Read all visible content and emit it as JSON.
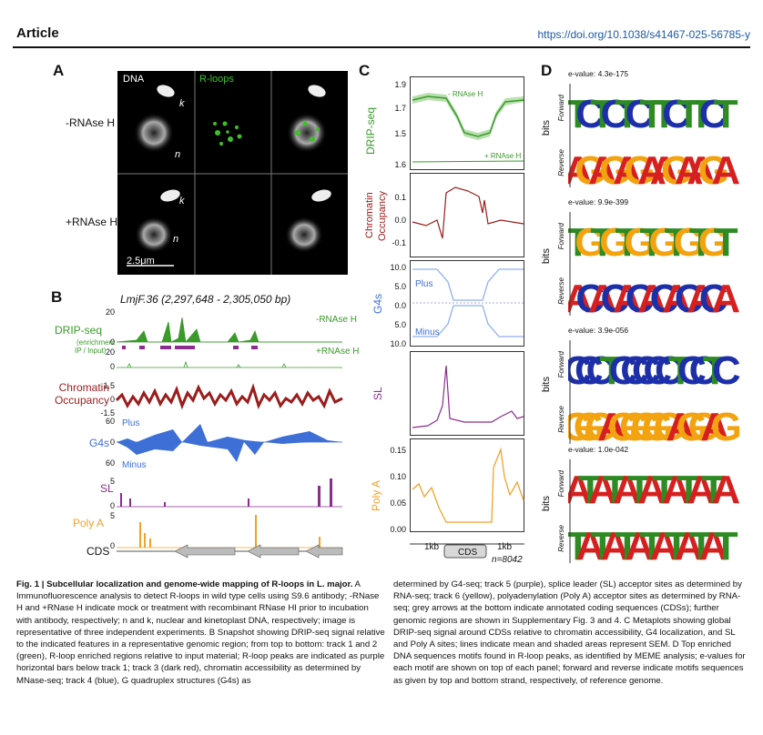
{
  "header": {
    "section": "Article",
    "doi": "https://doi.org/10.1038/s41467-025-56785-y"
  },
  "panelA": {
    "letter": "A",
    "col_labels": [
      "DNA",
      "R-loops"
    ],
    "row_labels": [
      "-RNAse H",
      "+RNAse H"
    ],
    "k": "k",
    "n": "n",
    "scale": "2.5μm"
  },
  "panelB": {
    "letter": "B",
    "locus": "LmjF.36 (2,297,648 - 2,305,050 bp)",
    "tracks": {
      "drip_label": "DRIP-seq",
      "drip_sub1": "(enrichment",
      "drip_sub2": "IP / Input)",
      "drip_minus": "-RNAse H",
      "drip_plus": "+RNAse H",
      "chrom_label1": "Chromatin",
      "chrom_label2": "Occupancy",
      "g4_label": "G4s",
      "plus": "Plus",
      "minus": "Minus",
      "sl_label": "SL",
      "polya_label": "Poly A",
      "cds_label": "CDS"
    },
    "axes": {
      "drip_top": "20",
      "drip_zero": "0",
      "drip_mid": "20",
      "drip_bot": "0",
      "chrom_top": "1.5",
      "chrom_zero": "0",
      "chrom_bot": "-1.5",
      "g4_top": "60",
      "g4_zero": "0",
      "g4_bot": "60",
      "sl_top": "5",
      "sl_zero": "0",
      "pa_top": "5",
      "pa_zero": "0"
    }
  },
  "panelC": {
    "letter": "C",
    "drip": {
      "label": "DRIP-seq",
      "ticks": [
        "1.9",
        "1.7",
        "1.5",
        "1.6"
      ],
      "minus": "- RNAse H",
      "plus": "+ RNAse H"
    },
    "chrom": {
      "label1": "Chromatin",
      "label2": "Occupancy",
      "ticks": [
        "0.1",
        "0.0",
        "-0.1"
      ]
    },
    "g4": {
      "label": "G4s",
      "ticks": [
        "10.0",
        "5.0",
        "0.0",
        "5.0",
        "10.0"
      ],
      "plus": "Plus",
      "minus": "Minus"
    },
    "sl": {
      "label": "SL"
    },
    "polya": {
      "label": "Poly A",
      "ticks": [
        "0.15",
        "0.10",
        "0.05",
        "0.00"
      ]
    },
    "xaxis": {
      "left": "1kb",
      "cds": "CDS",
      "right": "1kb",
      "n": "n=8042"
    }
  },
  "panelD": {
    "letter": "D",
    "forward": "Forward",
    "reverse": "Reverse",
    "bits": "bits",
    "motifs": [
      {
        "evalue": "e-value: 4.3e-175",
        "seq": "TCTCTCTTCTTCT",
        "rev": "AGAGAGAAGAAGA"
      },
      {
        "evalue": "e-value: 9.9e-399",
        "seq": "TGTGTGTGTGTGT",
        "rev": "ACACACACACACA"
      },
      {
        "evalue": "e-value: 3.9e-056",
        "seq": "CCCTCCCCCTCCTC",
        "rev": "GGGAGGGGGAGGAG"
      },
      {
        "evalue": "e-value: 1.0e-042",
        "seq": "ATATATATATATA",
        "rev": "TATATATATATAT"
      }
    ]
  },
  "colors": {
    "drip": "#3a9a2a",
    "chrom": "#9b1c1c",
    "g4": "#3d6fd6",
    "sl": "#8a2d8f",
    "polya": "#f2a22a",
    "logoA": "#d62020",
    "logoC": "#1c2fa8",
    "logoG": "#f2a30f",
    "logoT": "#2e8a22"
  },
  "caption": {
    "fig": "Fig. 1 | Subcellular localization and genome-wide mapping of R-loops in L. major.",
    "left_body": " A Immunofluorescence analysis to detect R-loops in wild type cells using S9.6 antibody; -RNase H and +RNase H indicate mock or treatment with recombinant RNase HI prior to incubation with antibody, respectively; n and k, nuclear and kinetoplast DNA, respectively; image is representative of three independent experiments. B Snapshot showing DRIP-seq signal relative to the indicated features in a representative genomic region; from top to bottom: track 1 and 2 (green), R-loop enriched regions relative to input material; R-loop peaks are indicated as purple horizontal bars below track 1; track 3 (dark red), chromatin accessibility as determined by MNase-seq; track 4 (blue), G quadruplex structures (G4s) as",
    "right_body": "determined by G4-seq; track 5 (purple), splice leader (SL) acceptor sites as determined by RNA-seq; track 6 (yellow), polyadenylation (Poly A) acceptor sites as determined by RNA-seq; grey arrows at the bottom indicate annotated coding sequences (CDSs); further genomic regions are shown in Supplementary Fig. 3 and 4. C Metaplots showing global DRIP-seq signal around CDSs relative to chromatin accessibility, G4 localization, and SL and Poly A sites; lines indicate mean and shaded areas represent SEM. D Top enriched DNA sequences motifs found in R-loop peaks, as identified by MEME analysis; e-values for each motif are shown on top of each panel; forward and reverse indicate motifs sequences as given by top and bottom strand, respectively, of reference genome."
  }
}
